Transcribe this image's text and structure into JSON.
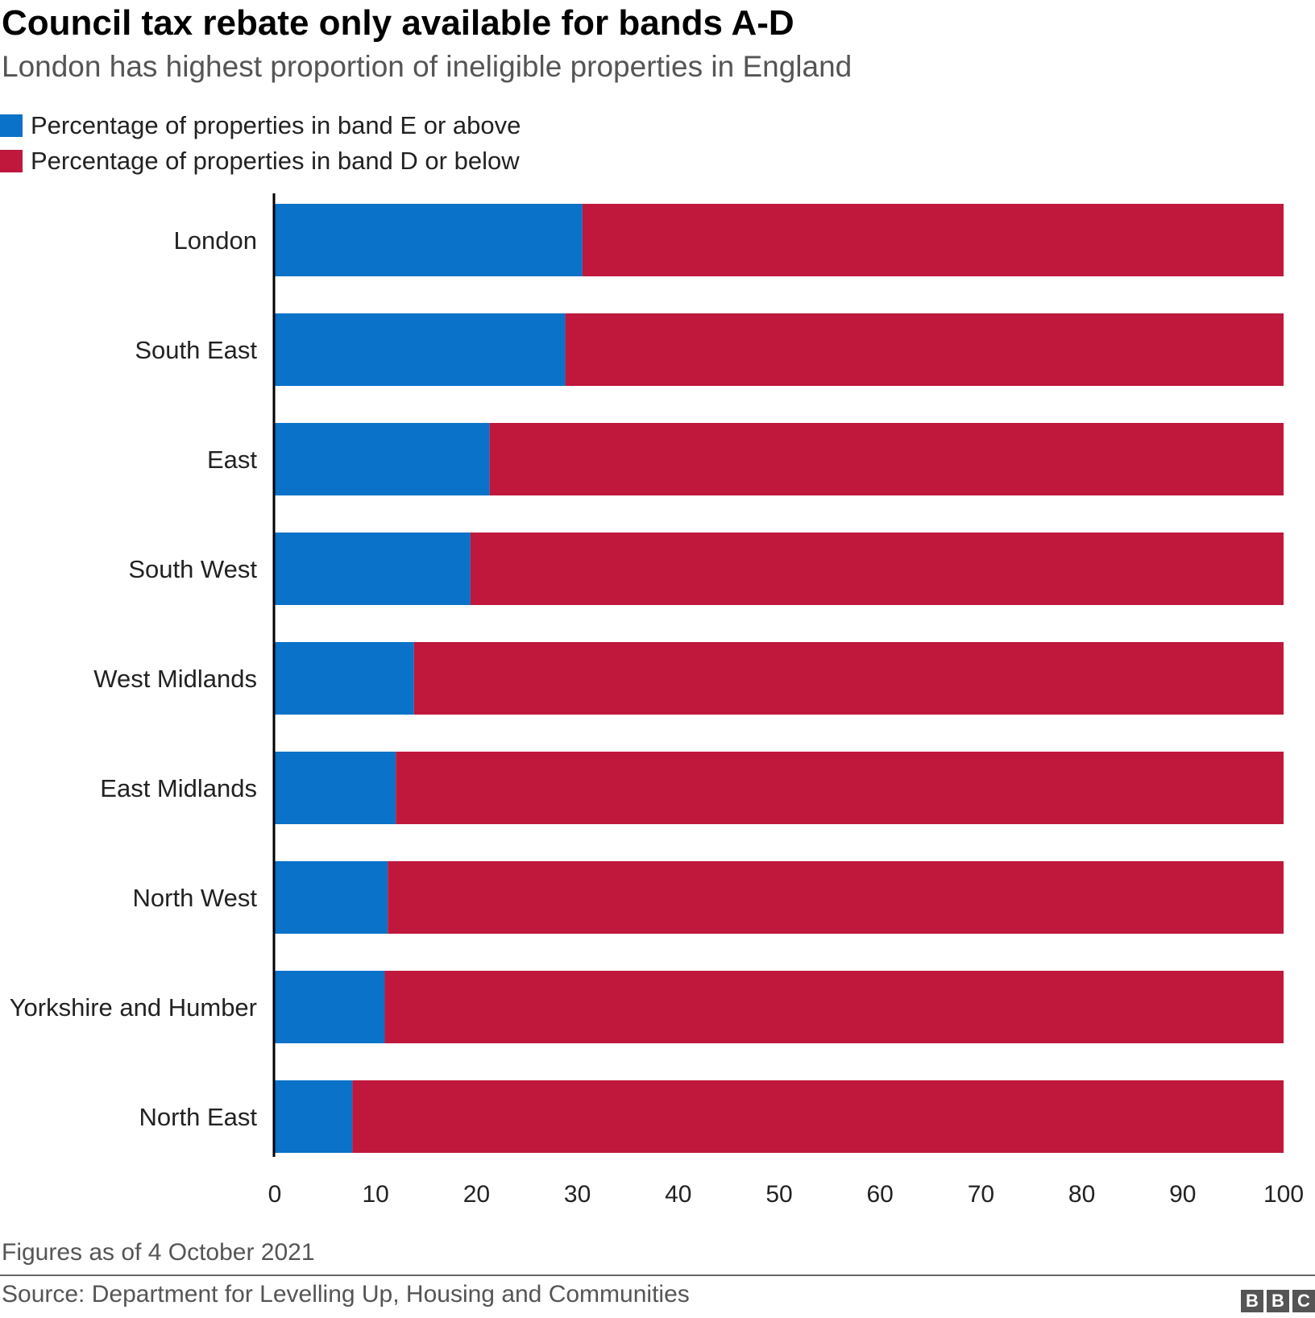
{
  "header": {
    "title": "Council tax rebate only available for bands A-D",
    "subtitle": "London has highest proportion of ineligible properties in England"
  },
  "legend": {
    "items": [
      {
        "label": "Percentage of properties in band E or above",
        "color": "#0a72c8"
      },
      {
        "label": "Percentage of properties in band D or below",
        "color": "#c0173c"
      }
    ]
  },
  "chart_data": {
    "type": "bar",
    "orientation": "horizontal",
    "stacked": true,
    "categories": [
      "London",
      "South East",
      "East",
      "South West",
      "West Midlands",
      "East Midlands",
      "North West",
      "Yorkshire and Humber",
      "North East"
    ],
    "series": [
      {
        "name": "Percentage of properties in band E or above",
        "color": "#0a72c8",
        "values": [
          30.5,
          28.8,
          21.3,
          19.4,
          13.8,
          12.0,
          11.2,
          10.9,
          7.7
        ]
      },
      {
        "name": "Percentage of properties in band D or below",
        "color": "#c0173c",
        "values": [
          69.5,
          71.2,
          78.7,
          80.6,
          86.2,
          88.0,
          88.8,
          89.1,
          92.3
        ]
      }
    ],
    "xlim": [
      0,
      100
    ],
    "xticks": [
      "0",
      "10",
      "20",
      "30",
      "40",
      "50",
      "60",
      "70",
      "80",
      "90",
      "100"
    ],
    "xlabel": "",
    "ylabel": "",
    "grid": false
  },
  "footer": {
    "note": "Figures as of 4 October 2021",
    "source": "Source: Department for Levelling Up, Housing and Communities",
    "logo_letters": [
      "B",
      "B",
      "C"
    ]
  }
}
